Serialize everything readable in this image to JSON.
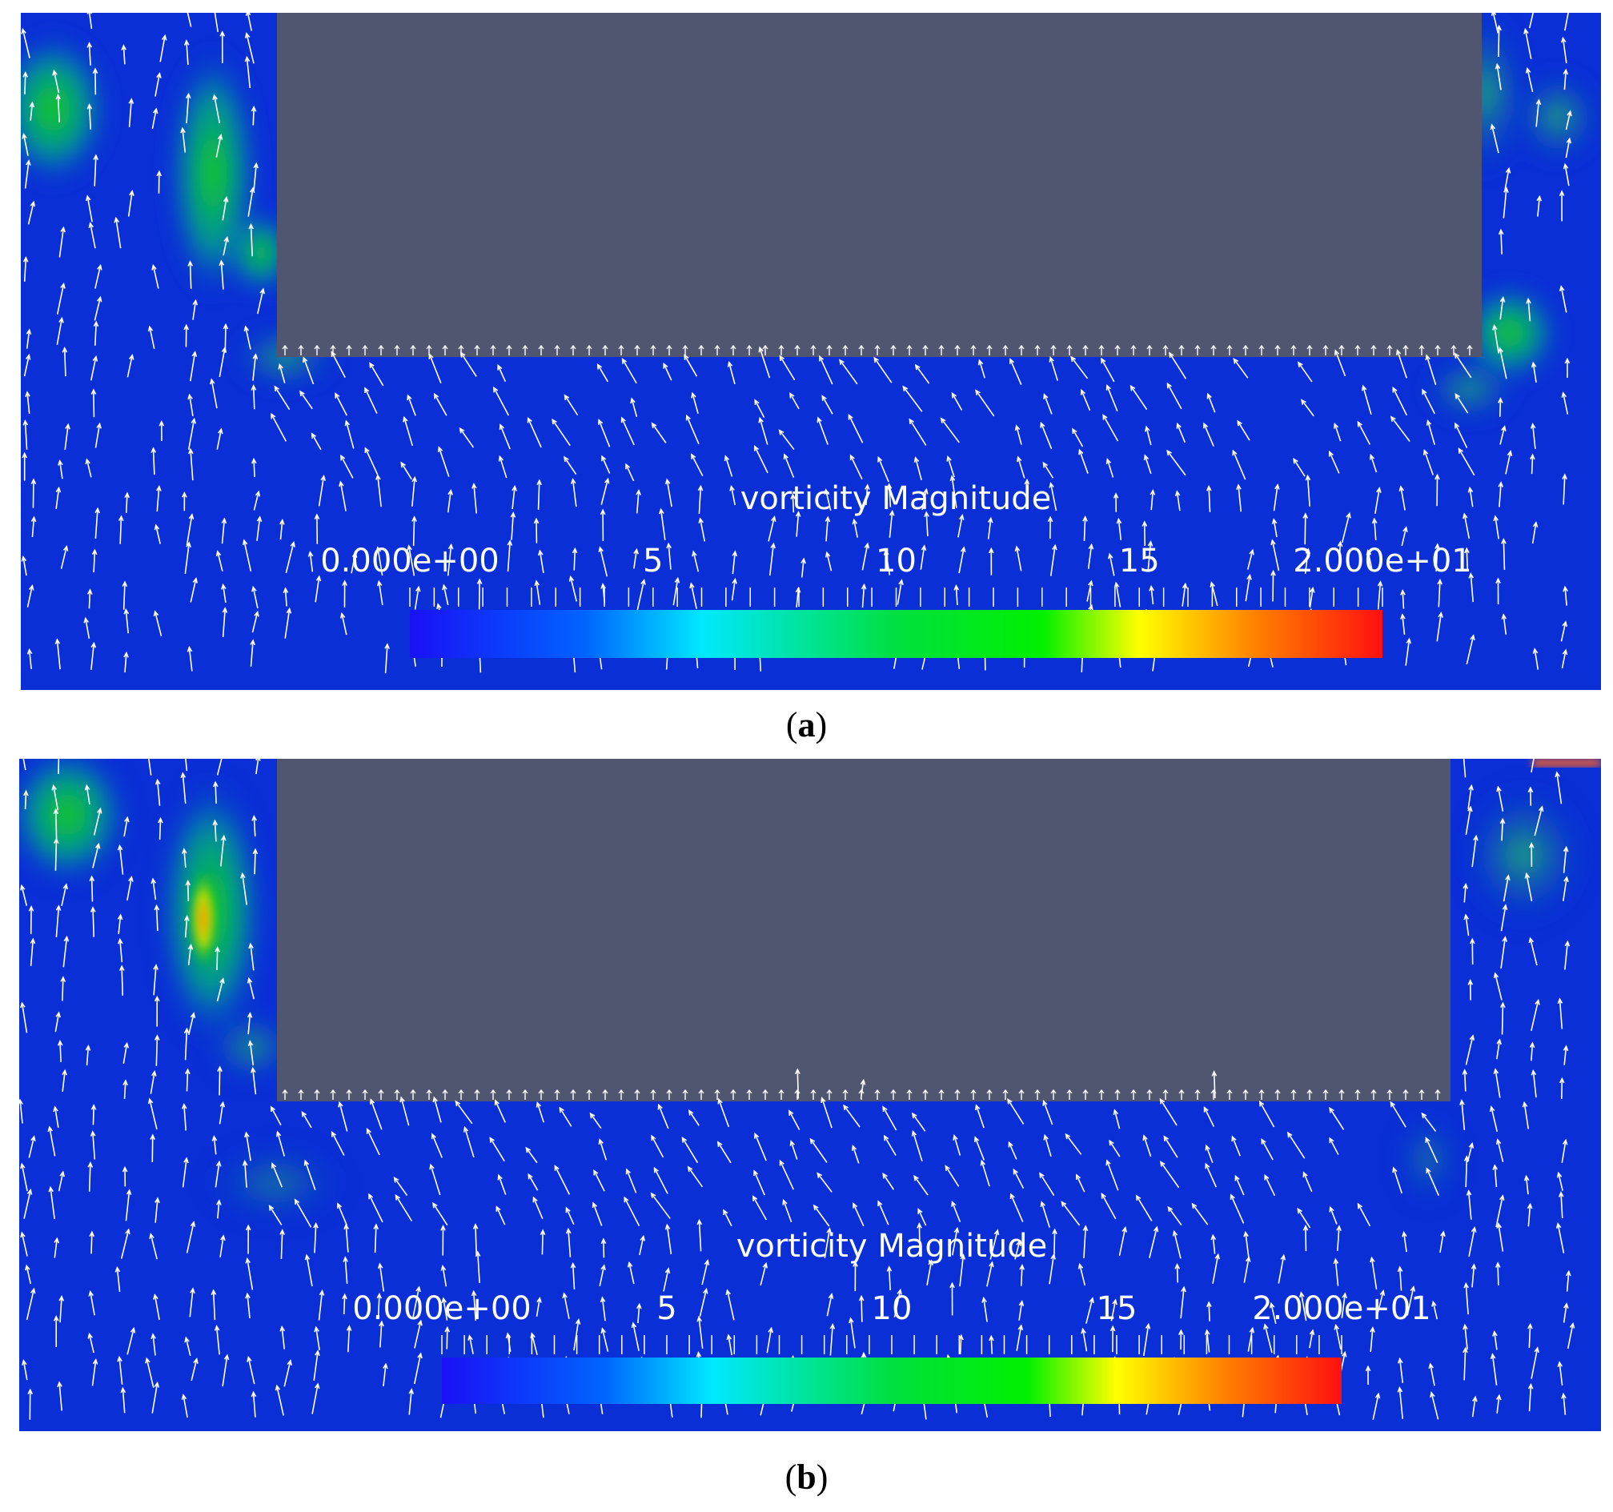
{
  "panels": [
    {
      "id": "a",
      "caption_letter": "a",
      "legend": {
        "title": "vorticity Magnitude",
        "tick_labels": [
          "0.000e+00",
          "5",
          "10",
          "15",
          "2.000e+01"
        ],
        "tick_values": [
          0,
          5,
          10,
          15,
          20
        ],
        "range": [
          0,
          20
        ]
      }
    },
    {
      "id": "b",
      "caption_letter": "b",
      "legend": {
        "title": "vorticity Magnitude",
        "tick_labels": [
          "0.000e+00",
          "5",
          "10",
          "15",
          "2.000e+01"
        ],
        "tick_values": [
          0,
          5,
          10,
          15,
          20
        ],
        "range": [
          0,
          20
        ]
      }
    }
  ],
  "colors": {
    "background_field": "#0a2fd6",
    "obstacle": "#50566f",
    "high_vorticity_green": "#1ed000",
    "colormap": [
      "#1a10f5",
      "#0064ff",
      "#00e8ff",
      "#00e040",
      "#00f000",
      "#ffff00",
      "#ff8000",
      "#ff1010"
    ]
  }
}
